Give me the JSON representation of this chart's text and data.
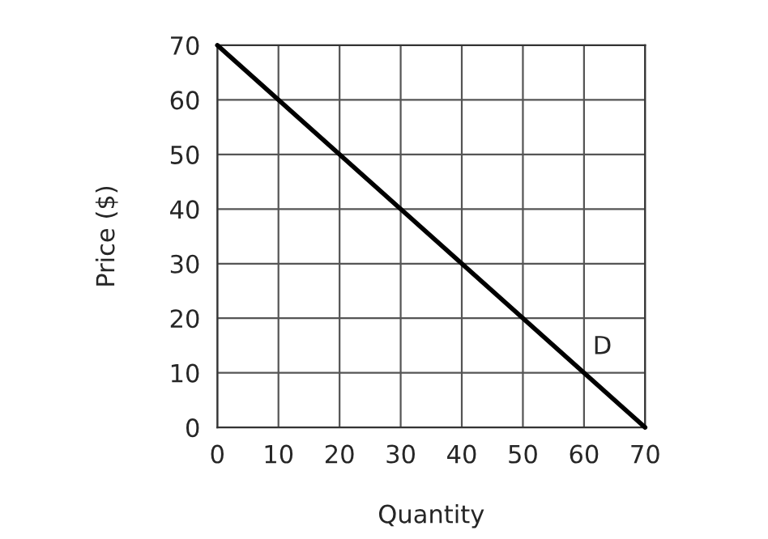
{
  "chart_data": {
    "type": "line",
    "xlabel": "Quantity",
    "ylabel": "Price ($)",
    "x": [
      0,
      70
    ],
    "series": [
      {
        "color": "#000000",
        "values": [
          70,
          0
        ]
      }
    ],
    "xlim": [
      0,
      70
    ],
    "ylim": [
      0,
      70
    ],
    "xticks": [
      0,
      10,
      20,
      30,
      40,
      50,
      60,
      70
    ],
    "yticks": [
      0,
      10,
      20,
      30,
      40,
      50,
      60,
      70
    ],
    "grid": true,
    "marker": "none",
    "line_style": "solid",
    "annotations": [
      "D"
    ]
  }
}
